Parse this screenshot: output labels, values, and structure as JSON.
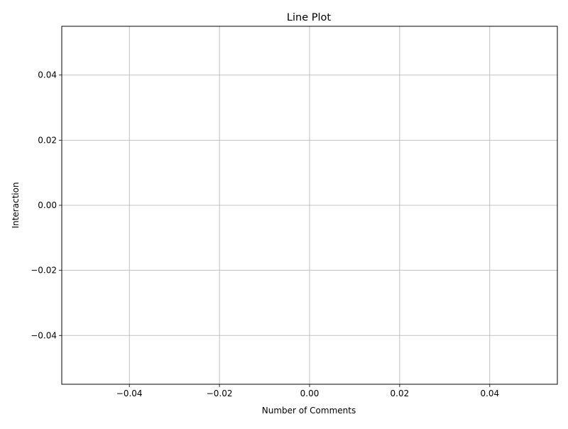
{
  "chart_data": {
    "type": "line",
    "title": "Line Plot",
    "xlabel": "Number of Comments",
    "ylabel": "Interaction",
    "xlim": [
      -0.055,
      0.055
    ],
    "ylim": [
      -0.055,
      0.055
    ],
    "x_ticks": [
      -0.04,
      -0.02,
      0.0,
      0.02,
      0.04
    ],
    "y_ticks": [
      -0.04,
      -0.02,
      0.0,
      0.02,
      0.04
    ],
    "x_tick_labels": [
      "−0.04",
      "−0.02",
      "0.00",
      "0.02",
      "0.04"
    ],
    "y_tick_labels": [
      "−0.04",
      "−0.02",
      "0.00",
      "0.02",
      "0.04"
    ],
    "grid": true,
    "series": [
      {
        "x": [],
        "y": []
      }
    ],
    "colors": {
      "grid": "#b0b0b0",
      "axes": "#000000",
      "line": "#1f77b4"
    }
  }
}
